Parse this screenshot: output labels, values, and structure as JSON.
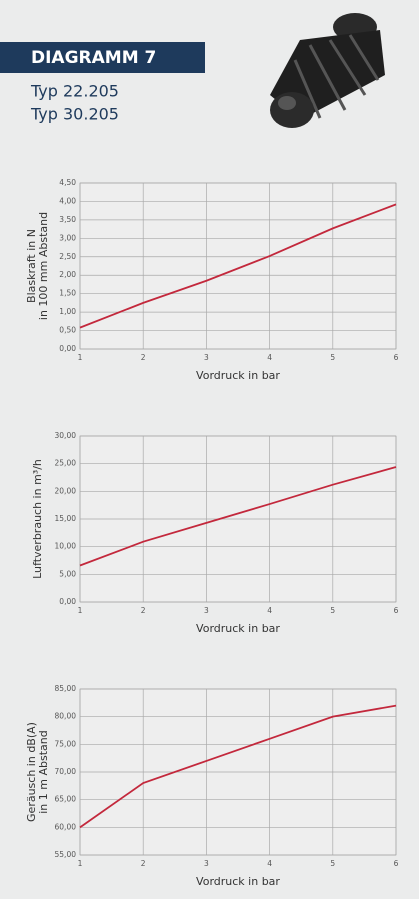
{
  "header": {
    "title": "DIAGRAMM 7",
    "types": [
      "Typ 22.205",
      "Typ 30.205"
    ]
  },
  "chart_data": [
    {
      "type": "line",
      "xlabel": "Vordruck in bar",
      "ylabel_lines": [
        "Blaskraft in N",
        "in 100 mm Abstand"
      ],
      "x": [
        1,
        2,
        3,
        4,
        5,
        6
      ],
      "values": [
        0.58,
        1.25,
        1.85,
        2.52,
        3.27,
        3.92
      ],
      "color": "#c3283c",
      "xlim": [
        1,
        6
      ],
      "xticks": [
        1,
        2,
        3,
        4,
        5,
        6
      ],
      "ylim": [
        0,
        4.5
      ],
      "yticks": [
        {
          "value": 0,
          "label": "0,00"
        },
        {
          "value": 0.5,
          "label": "0,50"
        },
        {
          "value": 1,
          "label": "1,00"
        },
        {
          "value": 1.5,
          "label": "1,50"
        },
        {
          "value": 2,
          "label": "2,00"
        },
        {
          "value": 2.5,
          "label": "2,50"
        },
        {
          "value": 3,
          "label": "3,00"
        },
        {
          "value": 3.5,
          "label": "3,50"
        },
        {
          "value": 4,
          "label": "4,00"
        },
        {
          "value": 4.5,
          "label": "4,50"
        }
      ],
      "grid": true
    },
    {
      "type": "line",
      "xlabel": "Vordruck in bar",
      "ylabel_lines": [
        "Luftverbrauch in m³/h"
      ],
      "x": [
        1,
        2,
        3,
        4,
        5,
        6
      ],
      "values": [
        6.6,
        10.9,
        14.3,
        17.7,
        21.2,
        24.4
      ],
      "color": "#c3283c",
      "xlim": [
        1,
        6
      ],
      "xticks": [
        1,
        2,
        3,
        4,
        5,
        6
      ],
      "ylim": [
        0,
        30
      ],
      "yticks": [
        {
          "value": 0,
          "label": "0,00"
        },
        {
          "value": 5,
          "label": "5,00"
        },
        {
          "value": 10,
          "label": "10,00"
        },
        {
          "value": 15,
          "label": "15,00"
        },
        {
          "value": 20,
          "label": "20,00"
        },
        {
          "value": 25,
          "label": "25,00"
        },
        {
          "value": 30,
          "label": "30,00"
        }
      ],
      "grid": true
    },
    {
      "type": "line",
      "xlabel": "Vordruck in bar",
      "ylabel_lines": [
        "Geräusch in dB(A)",
        "in 1 m Abstand"
      ],
      "x": [
        1,
        2,
        3,
        4,
        5,
        6
      ],
      "values": [
        60,
        68,
        72,
        76,
        80,
        82
      ],
      "color": "#c3283c",
      "xlim": [
        1,
        6
      ],
      "xticks": [
        1,
        2,
        3,
        4,
        5,
        6
      ],
      "ylim": [
        55,
        85
      ],
      "yticks": [
        {
          "value": 55,
          "label": "55,00"
        },
        {
          "value": 60,
          "label": "60,00"
        },
        {
          "value": 65,
          "label": "65,00"
        },
        {
          "value": 70,
          "label": "70,00"
        },
        {
          "value": 75,
          "label": "75,00"
        },
        {
          "value": 80,
          "label": "80,00"
        },
        {
          "value": 85,
          "label": "85,00"
        }
      ],
      "grid": true
    }
  ]
}
